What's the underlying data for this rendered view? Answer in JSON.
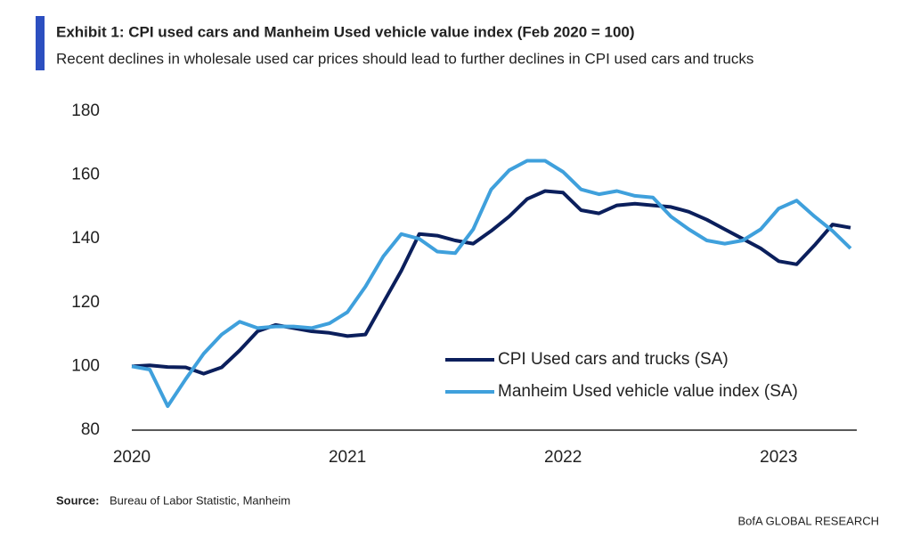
{
  "chart_data": {
    "type": "line",
    "title": "Exhibit 1: CPI used cars and Manheim Used vehicle value index (Feb 2020 = 100)",
    "subtitle": "Recent declines in wholesale used car prices should lead to further declines in CPI used cars and trucks",
    "source_label": "Source:",
    "source": "Bureau of Labor Statistic, Manheim",
    "footer": "BofA GLOBAL RESEARCH",
    "categories": [
      "2020",
      null,
      null,
      null,
      null,
      null,
      null,
      null,
      null,
      null,
      null,
      null,
      "2021",
      null,
      null,
      null,
      null,
      null,
      null,
      null,
      null,
      null,
      null,
      null,
      "2022",
      null,
      null,
      null,
      null,
      null,
      null,
      null,
      null,
      null,
      null,
      null,
      "2023",
      null,
      null,
      null,
      null
    ],
    "series": [
      {
        "name": "CPI Used cars and trucks (SA)",
        "color": "#0b1f5c",
        "values": [
          100,
          100.3,
          99.8,
          99.7,
          97.7,
          99.7,
          105,
          111,
          113,
          112,
          111,
          110.5,
          109.5,
          110,
          120,
          130,
          141.5,
          141,
          139.5,
          138.5,
          142.5,
          147,
          152.5,
          155,
          154.5,
          149,
          148,
          150.5,
          151,
          150.5,
          150,
          148.5,
          146,
          143,
          140,
          137,
          133,
          132,
          138,
          144.5,
          143.5
        ]
      },
      {
        "name": "Manheim Used vehicle value index (SA)",
        "color": "#3fa0dc",
        "values": [
          100,
          99,
          87.5,
          96,
          104,
          110,
          114,
          112,
          112.5,
          112.5,
          112,
          113.5,
          117,
          125,
          134.5,
          141.5,
          140,
          136,
          135.5,
          143,
          155.5,
          161.5,
          164.5,
          164.5,
          161,
          155.5,
          154,
          155,
          153.5,
          153,
          147,
          143,
          139.5,
          138.5,
          139.5,
          143,
          149.5,
          152,
          147,
          142.5,
          137
        ]
      }
    ],
    "ylim": [
      80,
      180
    ],
    "yticks": [
      80,
      100,
      120,
      140,
      160,
      180
    ],
    "grid": false,
    "legend": "lower right"
  }
}
